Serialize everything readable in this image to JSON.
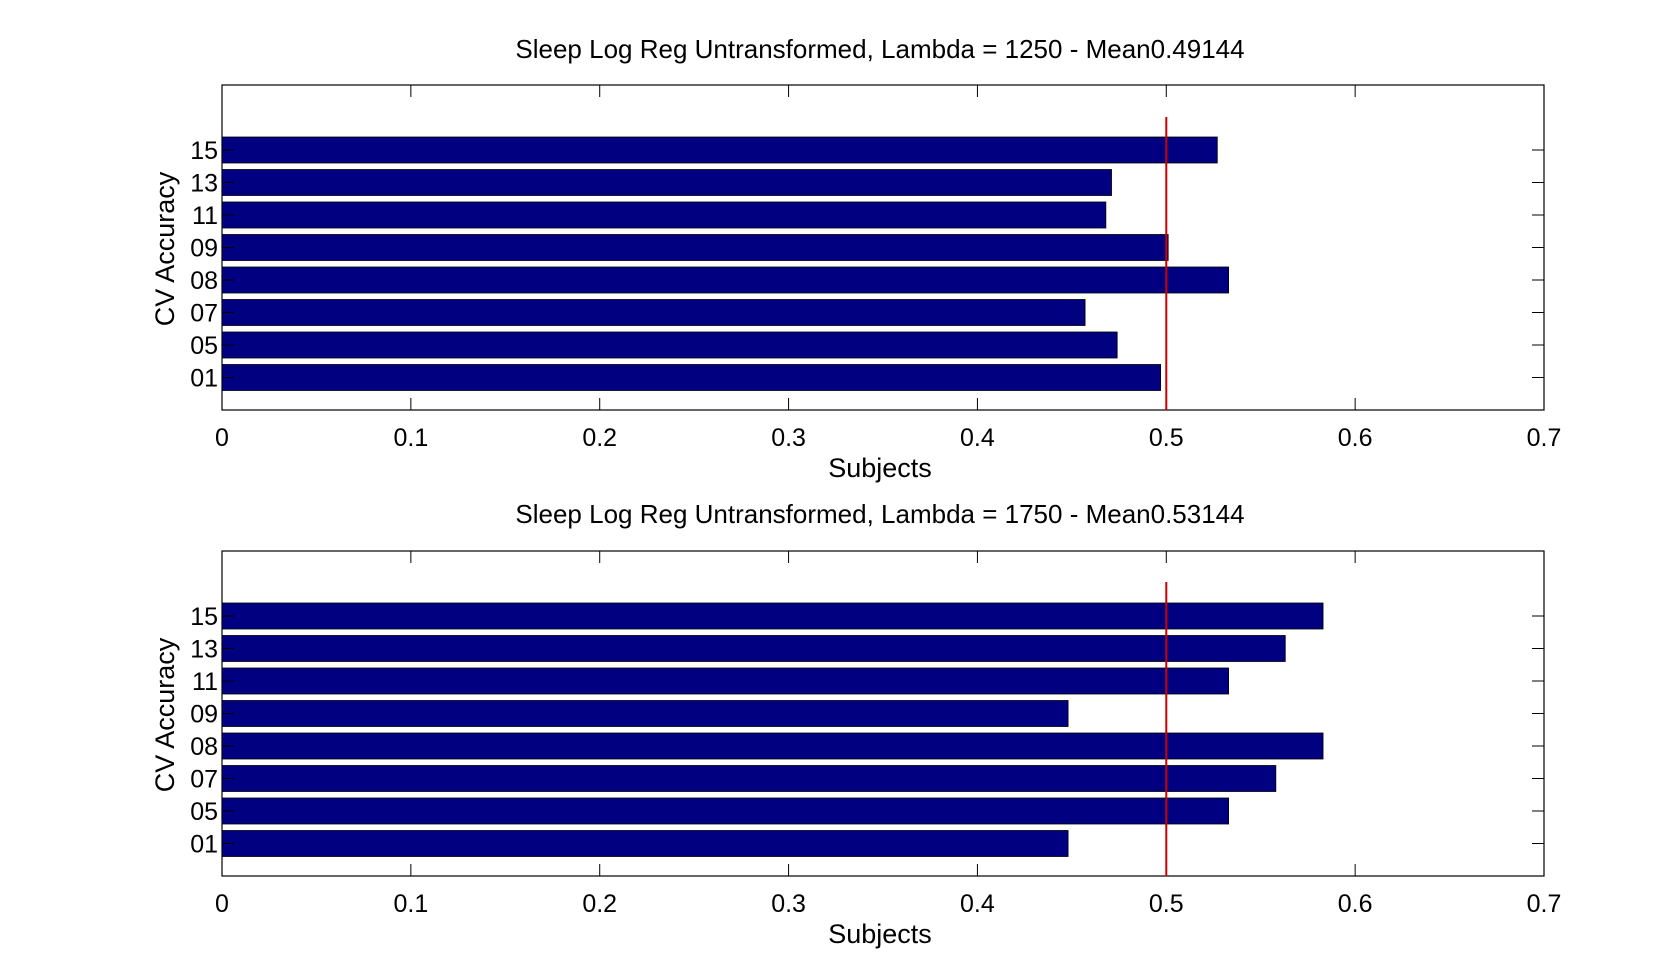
{
  "chart_data": [
    {
      "type": "bar",
      "orientation": "horizontal",
      "title": "Sleep Log Reg Untransformed, Lambda = 1250 - Mean0.49144",
      "xlabel": "Subjects",
      "ylabel": "CV Accuracy",
      "xlim": [
        0,
        0.7
      ],
      "xticks": [
        "0",
        "0.1",
        "0.2",
        "0.3",
        "0.4",
        "0.5",
        "0.6",
        "0.7"
      ],
      "categories": [
        "01",
        "05",
        "07",
        "08",
        "09",
        "11",
        "13",
        "15"
      ],
      "values": [
        0.497,
        0.474,
        0.457,
        0.533,
        0.501,
        0.468,
        0.471,
        0.527
      ],
      "reference_line": 0.5,
      "bar_color": "#000080",
      "reference_color": "#cc0000",
      "grid": false
    },
    {
      "type": "bar",
      "orientation": "horizontal",
      "title": "Sleep Log Reg Untransformed, Lambda = 1750 - Mean0.53144",
      "xlabel": "Subjects",
      "ylabel": "CV Accuracy",
      "xlim": [
        0,
        0.7
      ],
      "xticks": [
        "0",
        "0.1",
        "0.2",
        "0.3",
        "0.4",
        "0.5",
        "0.6",
        "0.7"
      ],
      "categories": [
        "01",
        "05",
        "07",
        "08",
        "09",
        "11",
        "13",
        "15"
      ],
      "values": [
        0.448,
        0.533,
        0.558,
        0.583,
        0.448,
        0.533,
        0.563,
        0.583
      ],
      "reference_line": 0.5,
      "bar_color": "#000080",
      "reference_color": "#cc0000",
      "grid": false
    }
  ]
}
